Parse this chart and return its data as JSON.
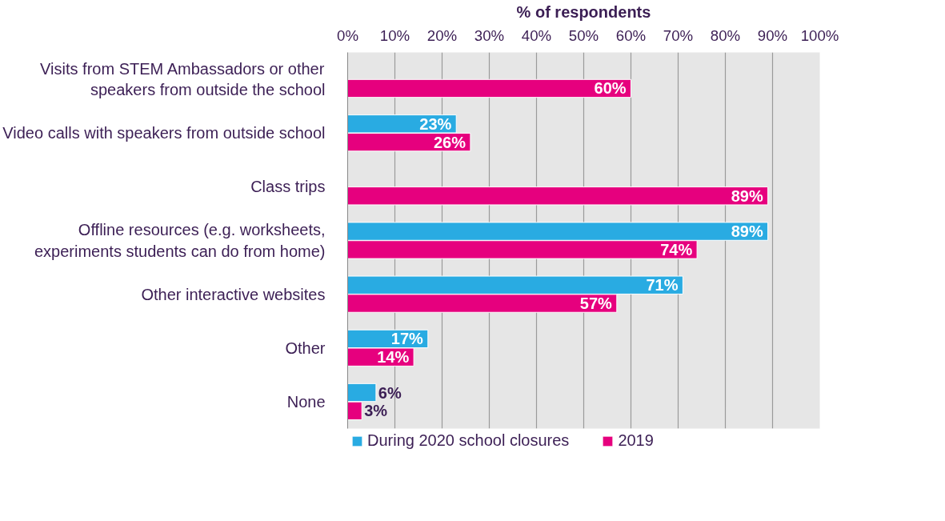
{
  "chart_data": {
    "type": "bar",
    "orientation": "horizontal",
    "xlabel": "% of respondents",
    "categories": [
      "Visits from STEM Ambassadors or other speakers from outside the school",
      "Video calls with speakers from outside school",
      "Class trips",
      "Offline resources (e.g. worksheets, experiments students can do from home)",
      "Other interactive websites",
      "Other",
      "None"
    ],
    "series": [
      {
        "name": "During 2020 school closures",
        "color": "#29abe2",
        "values": [
          null,
          23,
          null,
          89,
          71,
          17,
          6
        ],
        "value_labels": [
          null,
          "23%",
          null,
          "89%",
          "71%",
          "17%",
          "6%"
        ]
      },
      {
        "name": "2019",
        "color": "#e6007e",
        "values": [
          60,
          26,
          89,
          74,
          57,
          14,
          3
        ],
        "value_labels": [
          "60%",
          "26%",
          "89%",
          "74%",
          "57%",
          "14%",
          "3%"
        ]
      }
    ],
    "xlim": [
      0,
      100
    ],
    "xticks": [
      {
        "value": 0,
        "label": "0%"
      },
      {
        "value": 10,
        "label": "10%"
      },
      {
        "value": 20,
        "label": "20%"
      },
      {
        "value": 30,
        "label": "30%"
      },
      {
        "value": 40,
        "label": "40%"
      },
      {
        "value": 50,
        "label": "50%"
      },
      {
        "value": 60,
        "label": "60%"
      },
      {
        "value": 70,
        "label": "70%"
      },
      {
        "value": 80,
        "label": "80%"
      },
      {
        "value": 90,
        "label": "90%"
      },
      {
        "value": 100,
        "label": "100%"
      }
    ],
    "grid": "x",
    "legend": "bottom"
  }
}
